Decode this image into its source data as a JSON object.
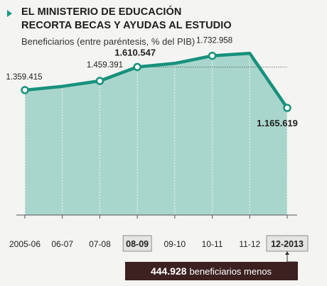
{
  "header": {
    "title_line1": "EL MINISTERIO DE EDUCACIÓN",
    "title_line2": "RECORTA BECAS Y AYUDAS AL ESTUDIO",
    "subtitle": "Beneficiarios (entre paréntesis, % del PIB)"
  },
  "colors": {
    "line": "#17917d",
    "area": "#a9d6cc",
    "marker": "#1a9a86",
    "callout_bg": "#3d2020",
    "highlight_box": "#e4e4e2"
  },
  "chart_data": {
    "type": "area",
    "categories": [
      "2005-06",
      "06-07",
      "07-08",
      "08-09",
      "09-10",
      "10-11",
      "11-12",
      "12-2013"
    ],
    "values": [
      1359415,
      1400000,
      1459391,
      1610547,
      1650000,
      1732958,
      1760000,
      1165619
    ],
    "data_labels": [
      {
        "index": 0,
        "text": "1.359.415",
        "bold": false
      },
      {
        "index": 2,
        "text": "1.459.391",
        "bold": false
      },
      {
        "index": 3,
        "text": "1.610.547",
        "bold": true
      },
      {
        "index": 5,
        "text": "1.732.958",
        "bold": false
      },
      {
        "index": 7,
        "text": "1.165.619",
        "bold": true
      }
    ],
    "highlighted_categories": [
      "08-09",
      "12-2013"
    ],
    "reference_line_value": 1610547,
    "ylim": [
      0,
      2000000
    ],
    "grid": false,
    "title": "EL MINISTERIO DE EDUCACIÓN RECORTA BECAS Y AYUDAS AL ESTUDIO",
    "subtitle": "Beneficiarios (entre paréntesis, % del PIB)",
    "xlabel": "",
    "ylabel": ""
  },
  "callout": {
    "value": "444.928",
    "text": "beneficiarios menos"
  }
}
